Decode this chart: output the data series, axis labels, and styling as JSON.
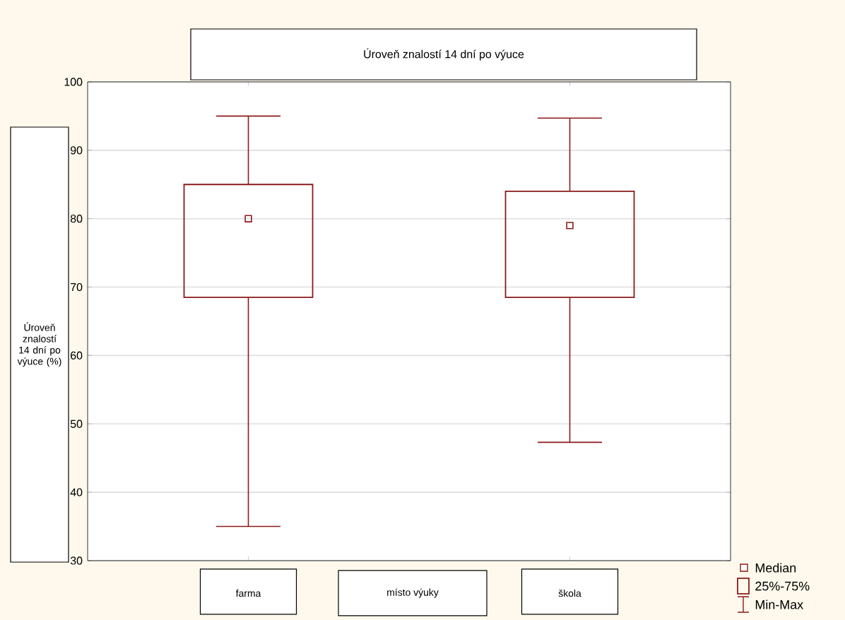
{
  "chart_data": {
    "type": "box",
    "title": "Úroveň znalostí 14 dní po výuce",
    "xlabel": "místo výuky",
    "ylabel": "Úroveň znalostí 14 dní po výuce (%)",
    "categories": [
      "farma",
      "škola"
    ],
    "series": [
      {
        "color": "#8b1a1a",
        "boxes": [
          {
            "low": 35,
            "q1": 68.5,
            "median": 80,
            "q3": 85,
            "high": 95
          },
          {
            "low": 47.3,
            "q1": 68.5,
            "median": 79,
            "q3": 84,
            "high": 94.7
          }
        ]
      }
    ],
    "ylim": [
      30,
      100
    ],
    "yticks": [
      30,
      40,
      50,
      60,
      70,
      80,
      90,
      100
    ],
    "grid": "y",
    "marker": "square",
    "annotations": [
      "Median",
      "25%-75%",
      "Min-Max"
    ]
  }
}
